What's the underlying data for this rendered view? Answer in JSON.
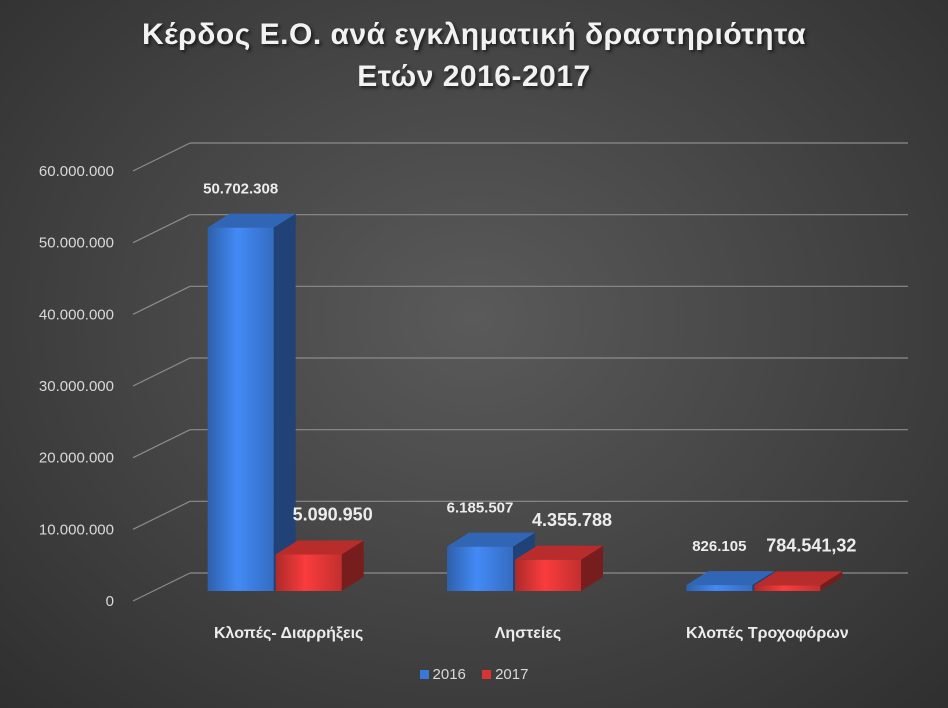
{
  "chart_data": {
    "type": "bar",
    "title": [
      "Κέρδος Ε.Ο. ανά εγκληματική δραστηριότητα",
      "Ετών 2016-2017"
    ],
    "categories": [
      "Κλοπές- Διαρρήξεις",
      "Ληστείες",
      "Κλοπές Τροχοφόρων"
    ],
    "series": [
      {
        "name": "2016",
        "color": "#3a78d6",
        "values": [
          50702308,
          6185507,
          826105
        ],
        "labels": [
          "50.702.308",
          "6.185.507",
          "826.105"
        ]
      },
      {
        "name": "2017",
        "color": "#d93434",
        "values": [
          5090950,
          4355788,
          784541.32
        ],
        "labels": [
          "5.090.950",
          "4.355.788",
          "784.541,32"
        ]
      }
    ],
    "ylim": [
      0,
      60000000
    ],
    "yticks": [
      0,
      10000000,
      20000000,
      30000000,
      40000000,
      50000000,
      60000000
    ],
    "ytick_labels": [
      "0",
      "10.000.000",
      "20.000.000",
      "30.000.000",
      "40.000.000",
      "50.000.000",
      "60.000.000"
    ],
    "xlabel": "",
    "ylabel": "",
    "grid": true,
    "legend_position": "bottom",
    "style": "3d-clustered-column"
  }
}
